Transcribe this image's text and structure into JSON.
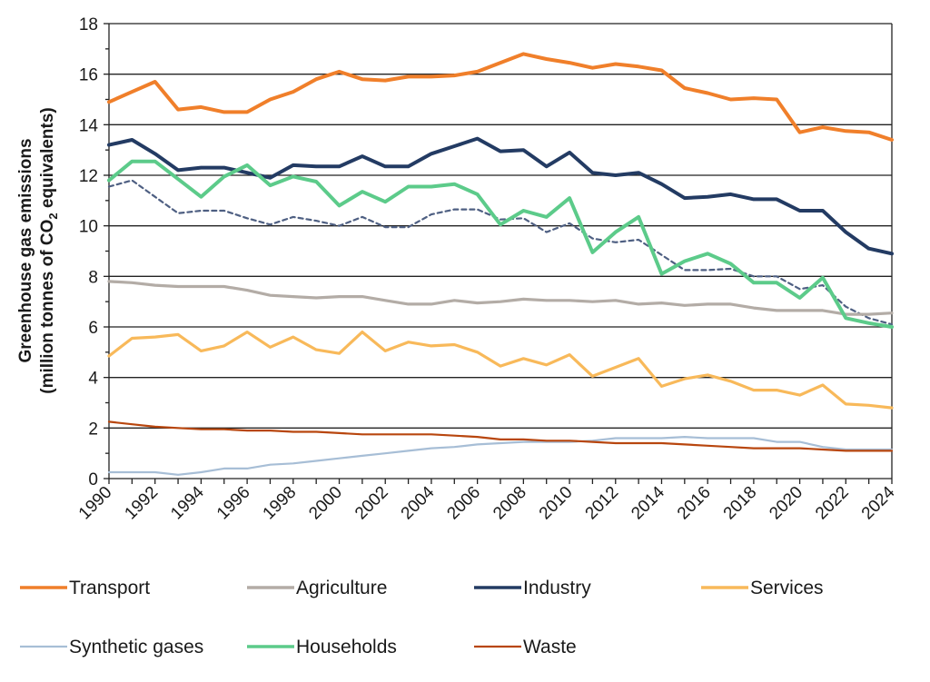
{
  "chart_data": {
    "type": "line",
    "title": "",
    "xlabel": "",
    "ylabel_line1": "Greenhouse gas emissions",
    "ylabel_line2_prefix": "(million tonnes of CO",
    "ylabel_line2_sub": "2",
    "ylabel_line2_suffix": " equivalents)",
    "ylim": [
      0,
      18
    ],
    "xlim": [
      1990,
      2024
    ],
    "y_ticks": [
      "0",
      "2",
      "4",
      "6",
      "8",
      "10",
      "12",
      "14",
      "16",
      "18"
    ],
    "x_tick_labels": [
      "1990",
      "1992",
      "1994",
      "1996",
      "1998",
      "2000",
      "2002",
      "2004",
      "2006",
      "2008",
      "2010",
      "2012",
      "2014",
      "2016",
      "2018",
      "2020",
      "2022",
      "2024"
    ],
    "grid": "horizontal major gridlines",
    "legend_position": "bottom",
    "x": [
      1990,
      1991,
      1992,
      1993,
      1994,
      1995,
      1996,
      1997,
      1998,
      1999,
      2000,
      2001,
      2002,
      2003,
      2004,
      2005,
      2006,
      2007,
      2008,
      2009,
      2010,
      2011,
      2012,
      2013,
      2014,
      2015,
      2016,
      2017,
      2018,
      2019,
      2020,
      2021,
      2022,
      2023,
      2024
    ],
    "series": [
      {
        "name": "Transport",
        "color": "#F07F2A",
        "width": "thick",
        "dashed": false,
        "in_legend": true,
        "values": [
          14.9,
          15.3,
          15.7,
          14.6,
          14.7,
          14.5,
          14.5,
          15.0,
          15.3,
          15.8,
          16.1,
          15.8,
          15.75,
          15.9,
          15.9,
          15.95,
          16.1,
          16.45,
          16.8,
          16.6,
          16.45,
          16.25,
          16.4,
          16.3,
          16.15,
          15.45,
          15.25,
          15.0,
          15.05,
          15.0,
          13.7,
          13.9,
          13.75,
          13.7,
          13.4
        ]
      },
      {
        "name": "Agriculture",
        "color": "#B3ACA6",
        "width": "medium",
        "dashed": false,
        "in_legend": true,
        "values": [
          7.8,
          7.75,
          7.65,
          7.6,
          7.6,
          7.6,
          7.45,
          7.25,
          7.2,
          7.15,
          7.2,
          7.2,
          7.05,
          6.9,
          6.9,
          7.05,
          6.95,
          7.0,
          7.1,
          7.05,
          7.05,
          7.0,
          7.05,
          6.9,
          6.95,
          6.85,
          6.9,
          6.9,
          6.75,
          6.65,
          6.65,
          6.65,
          6.5,
          6.5,
          6.55
        ]
      },
      {
        "name": "Industry",
        "color": "#233B63",
        "width": "thick",
        "dashed": false,
        "in_legend": true,
        "values": [
          13.2,
          13.4,
          12.85,
          12.2,
          12.3,
          12.3,
          12.1,
          11.9,
          12.4,
          12.35,
          12.35,
          12.75,
          12.35,
          12.35,
          12.85,
          13.15,
          13.45,
          12.95,
          13.0,
          12.35,
          12.9,
          12.1,
          12.0,
          12.1,
          11.65,
          11.1,
          11.15,
          11.25,
          11.05,
          11.05,
          10.6,
          10.6,
          9.75,
          9.1,
          8.9
        ]
      },
      {
        "name": "Services",
        "color": "#F8B95A",
        "width": "medium",
        "dashed": false,
        "in_legend": true,
        "values": [
          4.85,
          5.55,
          5.6,
          5.7,
          5.05,
          5.25,
          5.8,
          5.2,
          5.6,
          5.1,
          4.95,
          5.8,
          5.05,
          5.4,
          5.25,
          5.3,
          5.0,
          4.45,
          4.75,
          4.5,
          4.9,
          4.05,
          4.4,
          4.75,
          3.65,
          3.95,
          4.1,
          3.85,
          3.5,
          3.5,
          3.3,
          3.7,
          2.95,
          2.9,
          2.8
        ]
      },
      {
        "name": "Synthetic gases",
        "color": "#A7BED6",
        "width": "thin",
        "dashed": false,
        "in_legend": true,
        "values": [
          0.25,
          0.25,
          0.25,
          0.15,
          0.25,
          0.4,
          0.4,
          0.55,
          0.6,
          0.7,
          0.8,
          0.9,
          1.0,
          1.1,
          1.2,
          1.25,
          1.35,
          1.4,
          1.45,
          1.45,
          1.45,
          1.5,
          1.6,
          1.6,
          1.6,
          1.65,
          1.6,
          1.6,
          1.6,
          1.45,
          1.45,
          1.25,
          1.15,
          1.15,
          1.15
        ]
      },
      {
        "name": "Households",
        "color": "#5CCB8A",
        "width": "thick",
        "dashed": false,
        "in_legend": true,
        "values": [
          11.8,
          12.55,
          12.55,
          11.85,
          11.15,
          11.95,
          12.4,
          11.6,
          11.95,
          11.75,
          10.8,
          11.35,
          10.95,
          11.55,
          11.55,
          11.65,
          11.25,
          10.05,
          10.6,
          10.35,
          11.1,
          8.95,
          9.75,
          10.35,
          8.1,
          8.6,
          8.9,
          8.5,
          7.75,
          7.75,
          7.15,
          7.95,
          6.35,
          6.15,
          6.0
        ]
      },
      {
        "name": "Waste",
        "color": "#B8460E",
        "width": "thin",
        "dashed": false,
        "in_legend": true,
        "values": [
          2.25,
          2.15,
          2.05,
          2.0,
          1.95,
          1.95,
          1.9,
          1.9,
          1.85,
          1.85,
          1.8,
          1.75,
          1.75,
          1.75,
          1.75,
          1.7,
          1.65,
          1.55,
          1.55,
          1.5,
          1.5,
          1.45,
          1.4,
          1.4,
          1.4,
          1.35,
          1.3,
          1.25,
          1.2,
          1.2,
          1.2,
          1.15,
          1.1,
          1.1,
          1.1
        ]
      },
      {
        "name": "Unlabeled dashed series",
        "color": "#4E5F82",
        "width": "thin",
        "dashed": true,
        "in_legend": false,
        "values": [
          11.55,
          11.8,
          11.15,
          10.5,
          10.6,
          10.6,
          10.3,
          10.05,
          10.35,
          10.2,
          10.0,
          10.35,
          9.95,
          9.95,
          10.45,
          10.65,
          10.65,
          10.25,
          10.3,
          9.75,
          10.1,
          9.5,
          9.35,
          9.45,
          8.85,
          8.25,
          8.25,
          8.3,
          8.0,
          8.0,
          7.5,
          7.65,
          6.8,
          6.35,
          6.1
        ]
      }
    ],
    "legend": [
      {
        "label": "Transport",
        "series": "Transport"
      },
      {
        "label": "Agriculture",
        "series": "Agriculture"
      },
      {
        "label": "Industry",
        "series": "Industry"
      },
      {
        "label": "Services",
        "series": "Services"
      },
      {
        "label": "Synthetic gases",
        "series": "Synthetic gases"
      },
      {
        "label": "Households",
        "series": "Households"
      },
      {
        "label": "Waste",
        "series": "Waste"
      }
    ]
  }
}
